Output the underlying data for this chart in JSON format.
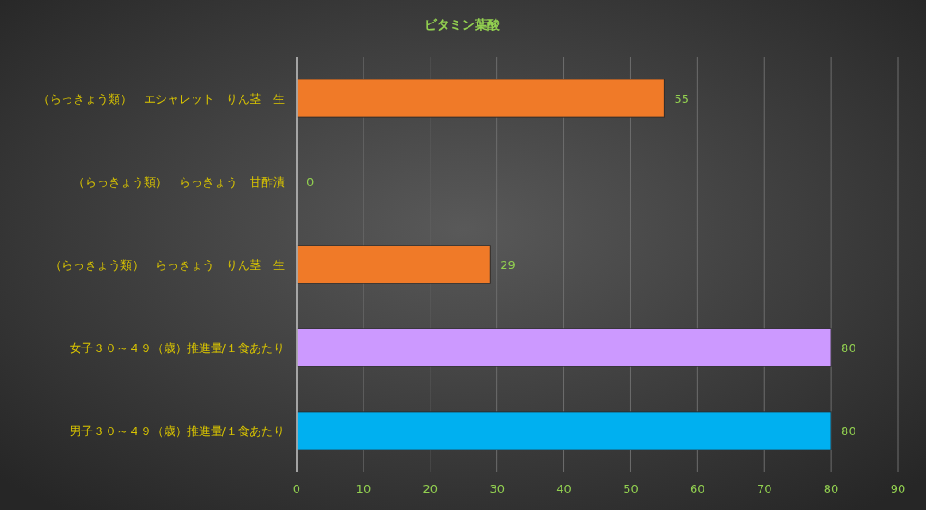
{
  "chart_data": {
    "type": "bar",
    "orientation": "horizontal",
    "title": "ビタミン葉酸",
    "categories": [
      "（らっきょう類）　エシャレット　りん茎　生",
      "（らっきょう類）　らっきょう　甘酢漬",
      "（らっきょう類）　らっきょう　りん茎　生",
      "女子３０～４９（歳）推進量/１食あたり",
      "男子３０～４９（歳）推進量/１食あたり"
    ],
    "values": [
      55,
      0,
      29,
      80,
      80
    ],
    "colors": [
      "#f07a28",
      "#f07a28",
      "#f07a28",
      "#cc99ff",
      "#00b0f0"
    ],
    "xlim": [
      0,
      90
    ],
    "xticks": [
      0,
      10,
      20,
      30,
      40,
      50,
      60,
      70,
      80,
      90
    ],
    "grid": "x",
    "data_labels": true
  }
}
